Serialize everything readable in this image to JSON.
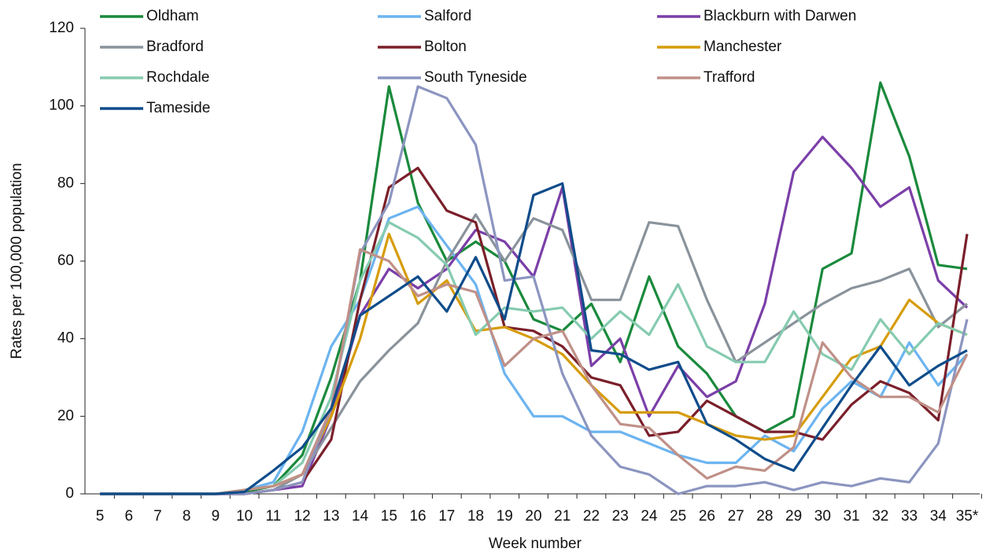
{
  "chart_data": {
    "type": "line",
    "x_label": "Week number",
    "y_label": "Rates per 100,000 population",
    "categories": [
      "5",
      "6",
      "7",
      "8",
      "9",
      "10",
      "11",
      "12",
      "13",
      "14",
      "15",
      "16",
      "17",
      "18",
      "19",
      "20",
      "21",
      "22",
      "23",
      "24",
      "25",
      "26",
      "27",
      "28",
      "29",
      "30",
      "31",
      "32",
      "33",
      "34",
      "35*"
    ],
    "ylim": [
      0,
      120
    ],
    "yticks": [
      0,
      20,
      40,
      60,
      80,
      100,
      120
    ],
    "grid": false,
    "series": [
      {
        "name": "Oldham",
        "color": "#1a8a3c",
        "values": [
          0,
          0,
          0,
          0,
          0,
          0.5,
          2,
          10,
          30,
          55,
          105,
          75,
          60,
          65,
          60,
          45,
          42,
          49,
          34,
          56,
          38,
          31,
          20,
          16,
          20,
          58,
          62,
          106,
          87,
          59,
          58
        ]
      },
      {
        "name": "Salford",
        "color": "#6cb4f0",
        "values": [
          0,
          0,
          0,
          0,
          0,
          1,
          3,
          16,
          38,
          50,
          71,
          74,
          64,
          54,
          31,
          20,
          20,
          16,
          16,
          13,
          10,
          8,
          8,
          15,
          11,
          22,
          29,
          25,
          39,
          28,
          36
        ]
      },
      {
        "name": "Blackburn with Darwen",
        "color": "#7b3fa8",
        "values": [
          0,
          0,
          0,
          0,
          0,
          0,
          1,
          2,
          20,
          46,
          58,
          53,
          58,
          68,
          65,
          56,
          79,
          33,
          40,
          20,
          33,
          25,
          29,
          49,
          83,
          92,
          84,
          74,
          79,
          55,
          48
        ]
      },
      {
        "name": "Bradford",
        "color": "#8a939b",
        "values": [
          0,
          0,
          0,
          0,
          0,
          0,
          1,
          5,
          17,
          29,
          37,
          44,
          60,
          72,
          60,
          71,
          68,
          50,
          50,
          70,
          69,
          50,
          34,
          39,
          44,
          49,
          53,
          55,
          58,
          43,
          49
        ]
      },
      {
        "name": "Bolton",
        "color": "#7a1f2a",
        "values": [
          0,
          0,
          0,
          0,
          0,
          0,
          1,
          3,
          14,
          50,
          79,
          84,
          73,
          70,
          43,
          42,
          38,
          30,
          28,
          15,
          16,
          24,
          20,
          16,
          16,
          14,
          23,
          29,
          26,
          19,
          67
        ]
      },
      {
        "name": "Manchester",
        "color": "#d69c0a",
        "values": [
          0,
          0,
          0,
          0,
          0,
          1,
          2,
          5,
          20,
          40,
          67,
          49,
          55,
          42,
          43,
          40,
          36,
          28,
          21,
          21,
          21,
          18,
          15,
          14,
          15,
          25,
          35,
          38,
          50,
          44,
          41
        ]
      },
      {
        "name": "Rochdale",
        "color": "#86cbb0",
        "values": [
          0,
          0,
          0,
          0,
          0,
          1,
          2,
          8,
          25,
          55,
          70,
          66,
          59,
          41,
          48,
          47,
          48,
          40,
          47,
          41,
          54,
          38,
          34,
          34,
          47,
          36,
          32,
          45,
          36,
          44,
          41
        ]
      },
      {
        "name": "South Tyneside",
        "color": "#8c95c0",
        "values": [
          0,
          0,
          0,
          0,
          0,
          0,
          1,
          3,
          22,
          62,
          75,
          105,
          102,
          90,
          55,
          56,
          31,
          15,
          7,
          5,
          0,
          2,
          2,
          3,
          1,
          3,
          2,
          4,
          3,
          13,
          45
        ]
      },
      {
        "name": "Trafford",
        "color": "#c09088",
        "values": [
          0,
          0,
          0,
          0,
          0,
          1,
          2,
          5,
          22,
          63,
          60,
          51,
          54,
          52,
          33,
          40,
          42,
          28,
          18,
          17,
          10,
          4,
          7,
          6,
          12,
          39,
          30,
          25,
          25,
          21,
          36
        ]
      },
      {
        "name": "Tameside",
        "color": "#0f4c8a",
        "values": [
          0,
          0,
          0,
          0,
          0,
          0.5,
          6,
          12,
          22,
          46,
          51,
          56,
          47,
          61,
          45,
          77,
          80,
          37,
          36,
          32,
          34,
          18,
          14,
          9,
          6,
          17,
          28,
          38,
          28,
          33,
          37
        ]
      }
    ]
  }
}
